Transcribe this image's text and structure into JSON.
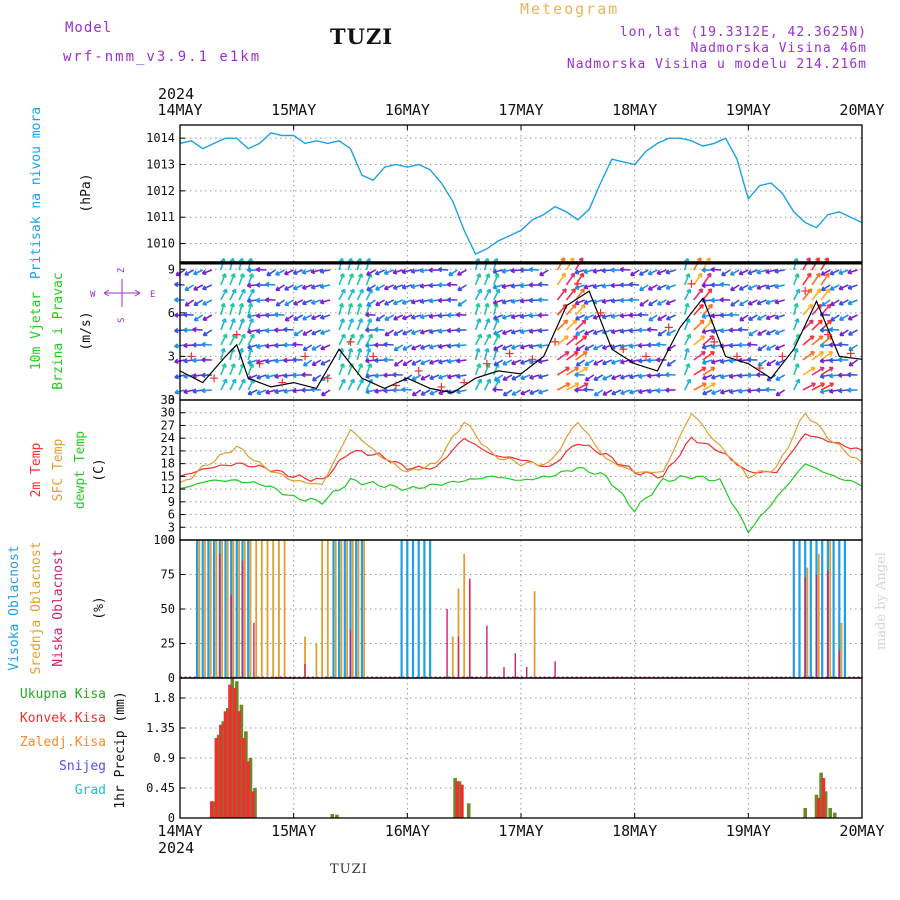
{
  "header": {
    "model_label": "Model",
    "model_name": "wrf-nmm_v3.9.1 e1km",
    "station": "TUZI",
    "meteogram": "Meteogram",
    "lonlat": "lon,lat (19.3312E, 42.3625N)",
    "height": "Nadmorska Visina 46m",
    "model_height": "Nadmorska Visina u modelu 214.216m"
  },
  "footer": {
    "station": "TUZI",
    "credit": "made by Angel"
  },
  "chart_data": [
    {
      "type": "line",
      "panel": "pressure",
      "ylabel": [
        "Pritisak na nivou mora",
        "(hPa)"
      ],
      "ylabel_color": "#1ea0e6",
      "x_axis": {
        "year": "2024",
        "range_days": [
          0,
          6
        ],
        "tick_labels": [
          "14MAY",
          "15MAY",
          "16MAY",
          "17MAY",
          "18MAY",
          "19MAY",
          "20MAY"
        ]
      },
      "ylim": [
        1009.3,
        1014.5
      ],
      "yticks": [
        1010,
        1011,
        1012,
        1013,
        1014
      ],
      "grid": true,
      "series": [
        {
          "color": "#1ea0e6",
          "x": [
            0,
            0.1,
            0.2,
            0.3,
            0.4,
            0.5,
            0.6,
            0.7,
            0.8,
            0.9,
            1.0,
            1.1,
            1.2,
            1.3,
            1.4,
            1.5,
            1.6,
            1.7,
            1.8,
            1.9,
            2.0,
            2.1,
            2.2,
            2.3,
            2.4,
            2.5,
            2.6,
            2.7,
            2.8,
            2.9,
            3.0,
            3.1,
            3.2,
            3.3,
            3.4,
            3.5,
            3.6,
            3.7,
            3.8,
            3.9,
            4.0,
            4.1,
            4.2,
            4.3,
            4.4,
            4.5,
            4.6,
            4.7,
            4.8,
            4.9,
            5.0,
            5.1,
            5.2,
            5.3,
            5.4,
            5.5,
            5.6,
            5.7,
            5.8,
            5.9,
            6.0
          ],
          "y": [
            1013.8,
            1013.9,
            1013.6,
            1013.8,
            1014.0,
            1014.0,
            1013.6,
            1013.8,
            1014.2,
            1014.1,
            1014.1,
            1013.8,
            1013.9,
            1013.8,
            1013.9,
            1013.6,
            1012.6,
            1012.4,
            1012.9,
            1013.0,
            1012.9,
            1013.0,
            1012.8,
            1012.3,
            1011.6,
            1010.5,
            1009.6,
            1009.8,
            1010.1,
            1010.3,
            1010.5,
            1010.9,
            1011.1,
            1011.4,
            1011.2,
            1010.9,
            1011.3,
            1012.3,
            1013.2,
            1013.1,
            1013.0,
            1013.5,
            1013.8,
            1014.0,
            1014.0,
            1013.9,
            1013.7,
            1013.8,
            1014.0,
            1013.2,
            1011.7,
            1012.2,
            1012.3,
            1011.9,
            1011.2,
            1010.8,
            1010.6,
            1011.1,
            1011.2,
            1011.0,
            1010.8
          ]
        }
      ]
    },
    {
      "type": "scatter",
      "panel": "wind",
      "ylabel": [
        "10m Vjetar",
        "Brzina i Pravac",
        "(m/s)"
      ],
      "ylabel_colors": [
        "#22cc22",
        "#22cc22",
        "#111111"
      ],
      "compass": {
        "n": "Z",
        "w": "W",
        "e": "E",
        "s": "S"
      },
      "ylim": [
        0,
        9.5
      ],
      "yticks": [
        0,
        3,
        6,
        9
      ],
      "grid": true,
      "speed": {
        "x": [
          0,
          0.2,
          0.4,
          0.5,
          0.6,
          0.8,
          1.0,
          1.2,
          1.4,
          1.5,
          1.6,
          1.8,
          2.0,
          2.2,
          2.4,
          2.6,
          2.8,
          3.0,
          3.2,
          3.4,
          3.6,
          3.8,
          4.0,
          4.2,
          4.4,
          4.6,
          4.8,
          5.0,
          5.2,
          5.4,
          5.6,
          5.8,
          6.0
        ],
        "y": [
          2.0,
          1.2,
          3.0,
          3.8,
          1.5,
          0.9,
          1.2,
          0.8,
          3.5,
          2.5,
          1.5,
          0.8,
          1.5,
          0.8,
          0.5,
          1.5,
          2.0,
          1.8,
          3.0,
          6.5,
          7.5,
          3.5,
          2.5,
          2.0,
          5.0,
          7.0,
          3.0,
          2.5,
          1.5,
          3.5,
          6.8,
          3.0,
          2.8
        ]
      },
      "gusts": {
        "x": [
          0.1,
          0.3,
          0.5,
          0.7,
          0.9,
          1.1,
          1.3,
          1.5,
          1.7,
          1.9,
          2.1,
          2.3,
          2.5,
          2.7,
          2.9,
          3.1,
          3.3,
          3.5,
          3.7,
          3.9,
          4.1,
          4.3,
          4.5,
          4.7,
          4.9,
          5.1,
          5.3,
          5.5,
          5.7,
          5.9
        ],
        "y": [
          3.0,
          1.5,
          4.5,
          2.5,
          1.2,
          3.0,
          1.5,
          4.0,
          3.0,
          1.0,
          2.0,
          0.9,
          1.2,
          2.5,
          3.2,
          2.8,
          4.0,
          8.0,
          6.0,
          3.5,
          3.0,
          5.0,
          8.0,
          4.0,
          3.0,
          2.2,
          3.0,
          7.5,
          4.5,
          3.2
        ]
      }
    },
    {
      "type": "line",
      "panel": "temperature",
      "ylabel": [
        "2m Temp",
        "SFC Temp",
        "dewpt Temp",
        "(C)"
      ],
      "ylabel_colors": [
        "#ee3030",
        "#e0a030",
        "#22cc22",
        "#111111"
      ],
      "ylim": [
        0,
        33
      ],
      "yticks": [
        0,
        3,
        6,
        9,
        12,
        15,
        18,
        21,
        24,
        27,
        30,
        33
      ],
      "grid": true,
      "x": [
        0,
        0.25,
        0.5,
        0.75,
        1.0,
        1.25,
        1.5,
        1.75,
        2.0,
        2.25,
        2.5,
        2.75,
        3.0,
        3.25,
        3.5,
        3.75,
        4.0,
        4.25,
        4.5,
        4.75,
        5.0,
        5.25,
        5.5,
        5.75,
        6.0
      ],
      "series": [
        {
          "color": "#ee3030",
          "y": [
            15,
            17,
            18,
            17,
            15,
            14,
            21,
            20,
            17,
            17,
            24,
            20,
            19,
            17,
            23,
            20,
            16,
            15,
            24,
            21,
            16,
            16,
            25,
            23,
            21
          ]
        },
        {
          "color": "#e0a030",
          "y": [
            13,
            18,
            22,
            17,
            14,
            13,
            26,
            20,
            16,
            18,
            28,
            20,
            18,
            18,
            28,
            19,
            16,
            16,
            30,
            22,
            15,
            17,
            30,
            23,
            18
          ]
        },
        {
          "color": "#22cc22",
          "y": [
            12,
            14,
            14,
            13,
            10,
            9,
            14,
            13,
            12,
            13,
            14,
            15,
            14,
            15,
            17,
            15,
            7,
            14,
            15,
            14,
            2,
            10,
            18,
            15,
            13
          ]
        }
      ]
    },
    {
      "type": "bar",
      "panel": "cloud",
      "ylabel": [
        "Visoka Oblacnost",
        "Srednja Oblacnost",
        "Niska Oblacnost",
        "(%)"
      ],
      "ylabel_colors": [
        "#1ea0e6",
        "#e0a030",
        "#d02070",
        "#111111"
      ],
      "ylim": [
        0,
        100
      ],
      "yticks": [
        0,
        25,
        50,
        75,
        100
      ],
      "grid": true,
      "series": [
        {
          "name": "Visoka Oblacnost",
          "color": "#1ea0e6",
          "x": [
            0.15,
            0.2,
            0.25,
            0.3,
            0.35,
            0.4,
            0.45,
            0.5,
            0.55,
            0.6,
            1.35,
            1.4,
            1.45,
            1.5,
            1.55,
            1.6,
            1.95,
            2.0,
            2.05,
            2.1,
            2.15,
            2.2,
            5.4,
            5.45,
            5.5,
            5.55,
            5.6,
            5.65,
            5.7,
            5.75,
            5.8,
            5.85
          ],
          "y": [
            100,
            100,
            100,
            100,
            100,
            100,
            100,
            100,
            100,
            100,
            100,
            100,
            100,
            100,
            100,
            100,
            100,
            100,
            100,
            100,
            100,
            100,
            100,
            100,
            100,
            100,
            100,
            100,
            100,
            100,
            100,
            100
          ]
        },
        {
          "name": "Srednja Oblacnost",
          "color": "#e0a030",
          "x": [
            0.17,
            0.22,
            0.27,
            0.32,
            0.37,
            0.42,
            0.47,
            0.52,
            0.57,
            0.62,
            0.67,
            0.72,
            0.77,
            0.82,
            0.87,
            0.92,
            1.1,
            1.2,
            1.25,
            1.3,
            1.37,
            1.42,
            1.47,
            1.52,
            1.57,
            1.62,
            2.4,
            2.45,
            2.5,
            2.55,
            3.12,
            5.52,
            5.62,
            5.72,
            5.82
          ],
          "y": [
            100,
            100,
            100,
            100,
            100,
            100,
            100,
            100,
            100,
            100,
            100,
            100,
            100,
            100,
            100,
            100,
            30,
            25,
            100,
            100,
            100,
            100,
            100,
            100,
            100,
            100,
            30,
            65,
            90,
            70,
            63,
            80,
            90,
            100,
            40
          ]
        },
        {
          "name": "Niska Oblacnost",
          "color": "#d02070",
          "x": [
            0.35,
            0.45,
            0.55,
            0.65,
            1.1,
            1.5,
            2.35,
            2.45,
            2.55,
            2.7,
            2.85,
            2.95,
            3.05,
            3.3,
            5.5,
            5.6,
            5.7,
            5.8
          ],
          "y": [
            90,
            60,
            85,
            40,
            10,
            35,
            50,
            30,
            72,
            38,
            8,
            18,
            8,
            12,
            73,
            75,
            78,
            20
          ]
        }
      ]
    },
    {
      "type": "bar",
      "panel": "precip",
      "ylabel": [
        "1hr Precip (mm)"
      ],
      "ylabel_colors": [
        "#111111"
      ],
      "legend": [
        {
          "label": "Ukupna Kisa",
          "color": "#22aa22"
        },
        {
          "label": "Konvek.Kisa",
          "color": "#ee3030"
        },
        {
          "label": "Zaledj.Kisa",
          "color": "#ff8830"
        },
        {
          "label": "Snijeg",
          "color": "#5050ee"
        },
        {
          "label": "Grad",
          "color": "#20c0c0"
        }
      ],
      "ylim": [
        0,
        2.1
      ],
      "yticks": [
        0,
        0.45,
        0.9,
        1.35,
        1.8
      ],
      "grid": true,
      "x_axis": {
        "year": "2024",
        "tick_labels": [
          "14MAY",
          "15MAY",
          "16MAY",
          "17MAY",
          "18MAY",
          "19MAY",
          "20MAY"
        ]
      },
      "series": [
        {
          "name": "Ukupna Kisa",
          "color": "#6a8a2a",
          "x": [
            0.3,
            0.34,
            0.38,
            0.42,
            0.46,
            0.5,
            0.54,
            0.58,
            0.62,
            0.66,
            1.34,
            1.38,
            2.42,
            2.46,
            2.54,
            5.5,
            5.6,
            5.64,
            5.68,
            5.72,
            5.76
          ],
          "y": [
            0.25,
            1.25,
            1.45,
            1.65,
            2.1,
            2.05,
            1.7,
            1.3,
            0.9,
            0.45,
            0.06,
            0.05,
            0.6,
            0.55,
            0.22,
            0.15,
            0.35,
            0.68,
            0.4,
            0.15,
            0.08
          ]
        },
        {
          "name": "Konvek.Kisa",
          "color": "#ee3030",
          "x": [
            0.28,
            0.32,
            0.36,
            0.4,
            0.44,
            0.48,
            0.52,
            0.56,
            0.6,
            0.64,
            2.44,
            2.48,
            5.62,
            5.66
          ],
          "y": [
            0.25,
            1.2,
            1.4,
            1.6,
            2.0,
            1.95,
            1.6,
            1.2,
            0.85,
            0.4,
            0.55,
            0.5,
            0.3,
            0.6
          ]
        }
      ]
    }
  ]
}
